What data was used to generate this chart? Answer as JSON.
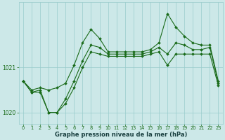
{
  "hours": [
    0,
    1,
    2,
    3,
    4,
    5,
    6,
    7,
    8,
    9,
    10,
    11,
    12,
    13,
    14,
    15,
    16,
    17,
    18,
    19,
    20,
    21,
    22,
    23
  ],
  "upper": [
    1020.7,
    1020.5,
    1020.55,
    1020.5,
    1020.55,
    1020.65,
    1021.05,
    1021.55,
    1021.85,
    1021.65,
    1021.35,
    1021.35,
    1021.35,
    1021.35,
    1021.35,
    1021.4,
    1021.55,
    1022.2,
    1021.9,
    1021.7,
    1021.55,
    1021.5,
    1021.5,
    1020.7
  ],
  "middle": [
    1020.7,
    1020.45,
    1020.5,
    1020.0,
    1020.0,
    1020.3,
    1020.7,
    1021.15,
    1021.5,
    1021.45,
    1021.3,
    1021.3,
    1021.3,
    1021.3,
    1021.3,
    1021.35,
    1021.45,
    1021.3,
    1021.55,
    1021.5,
    1021.4,
    1021.4,
    1021.45,
    1020.65
  ],
  "lower": [
    1020.7,
    1020.45,
    1020.45,
    1020.0,
    1020.0,
    1020.2,
    1020.55,
    1021.0,
    1021.35,
    1021.3,
    1021.25,
    1021.25,
    1021.25,
    1021.25,
    1021.25,
    1021.3,
    1021.35,
    1021.05,
    1021.3,
    1021.3,
    1021.3,
    1021.3,
    1021.3,
    1020.6
  ],
  "ylim": [
    1019.75,
    1022.45
  ],
  "yticks": [
    1020,
    1021
  ],
  "xlim": [
    -0.5,
    23.5
  ],
  "xticks": [
    0,
    1,
    2,
    3,
    4,
    5,
    6,
    7,
    8,
    9,
    10,
    11,
    12,
    13,
    14,
    15,
    16,
    17,
    18,
    19,
    20,
    21,
    22,
    23
  ],
  "xlabel": "Graphe pression niveau de la mer (hPa)",
  "line_color": "#1a6b1a",
  "bg_color": "#cce8e8",
  "grid_color": "#99cccc",
  "xlabel_color": "#1a4040"
}
